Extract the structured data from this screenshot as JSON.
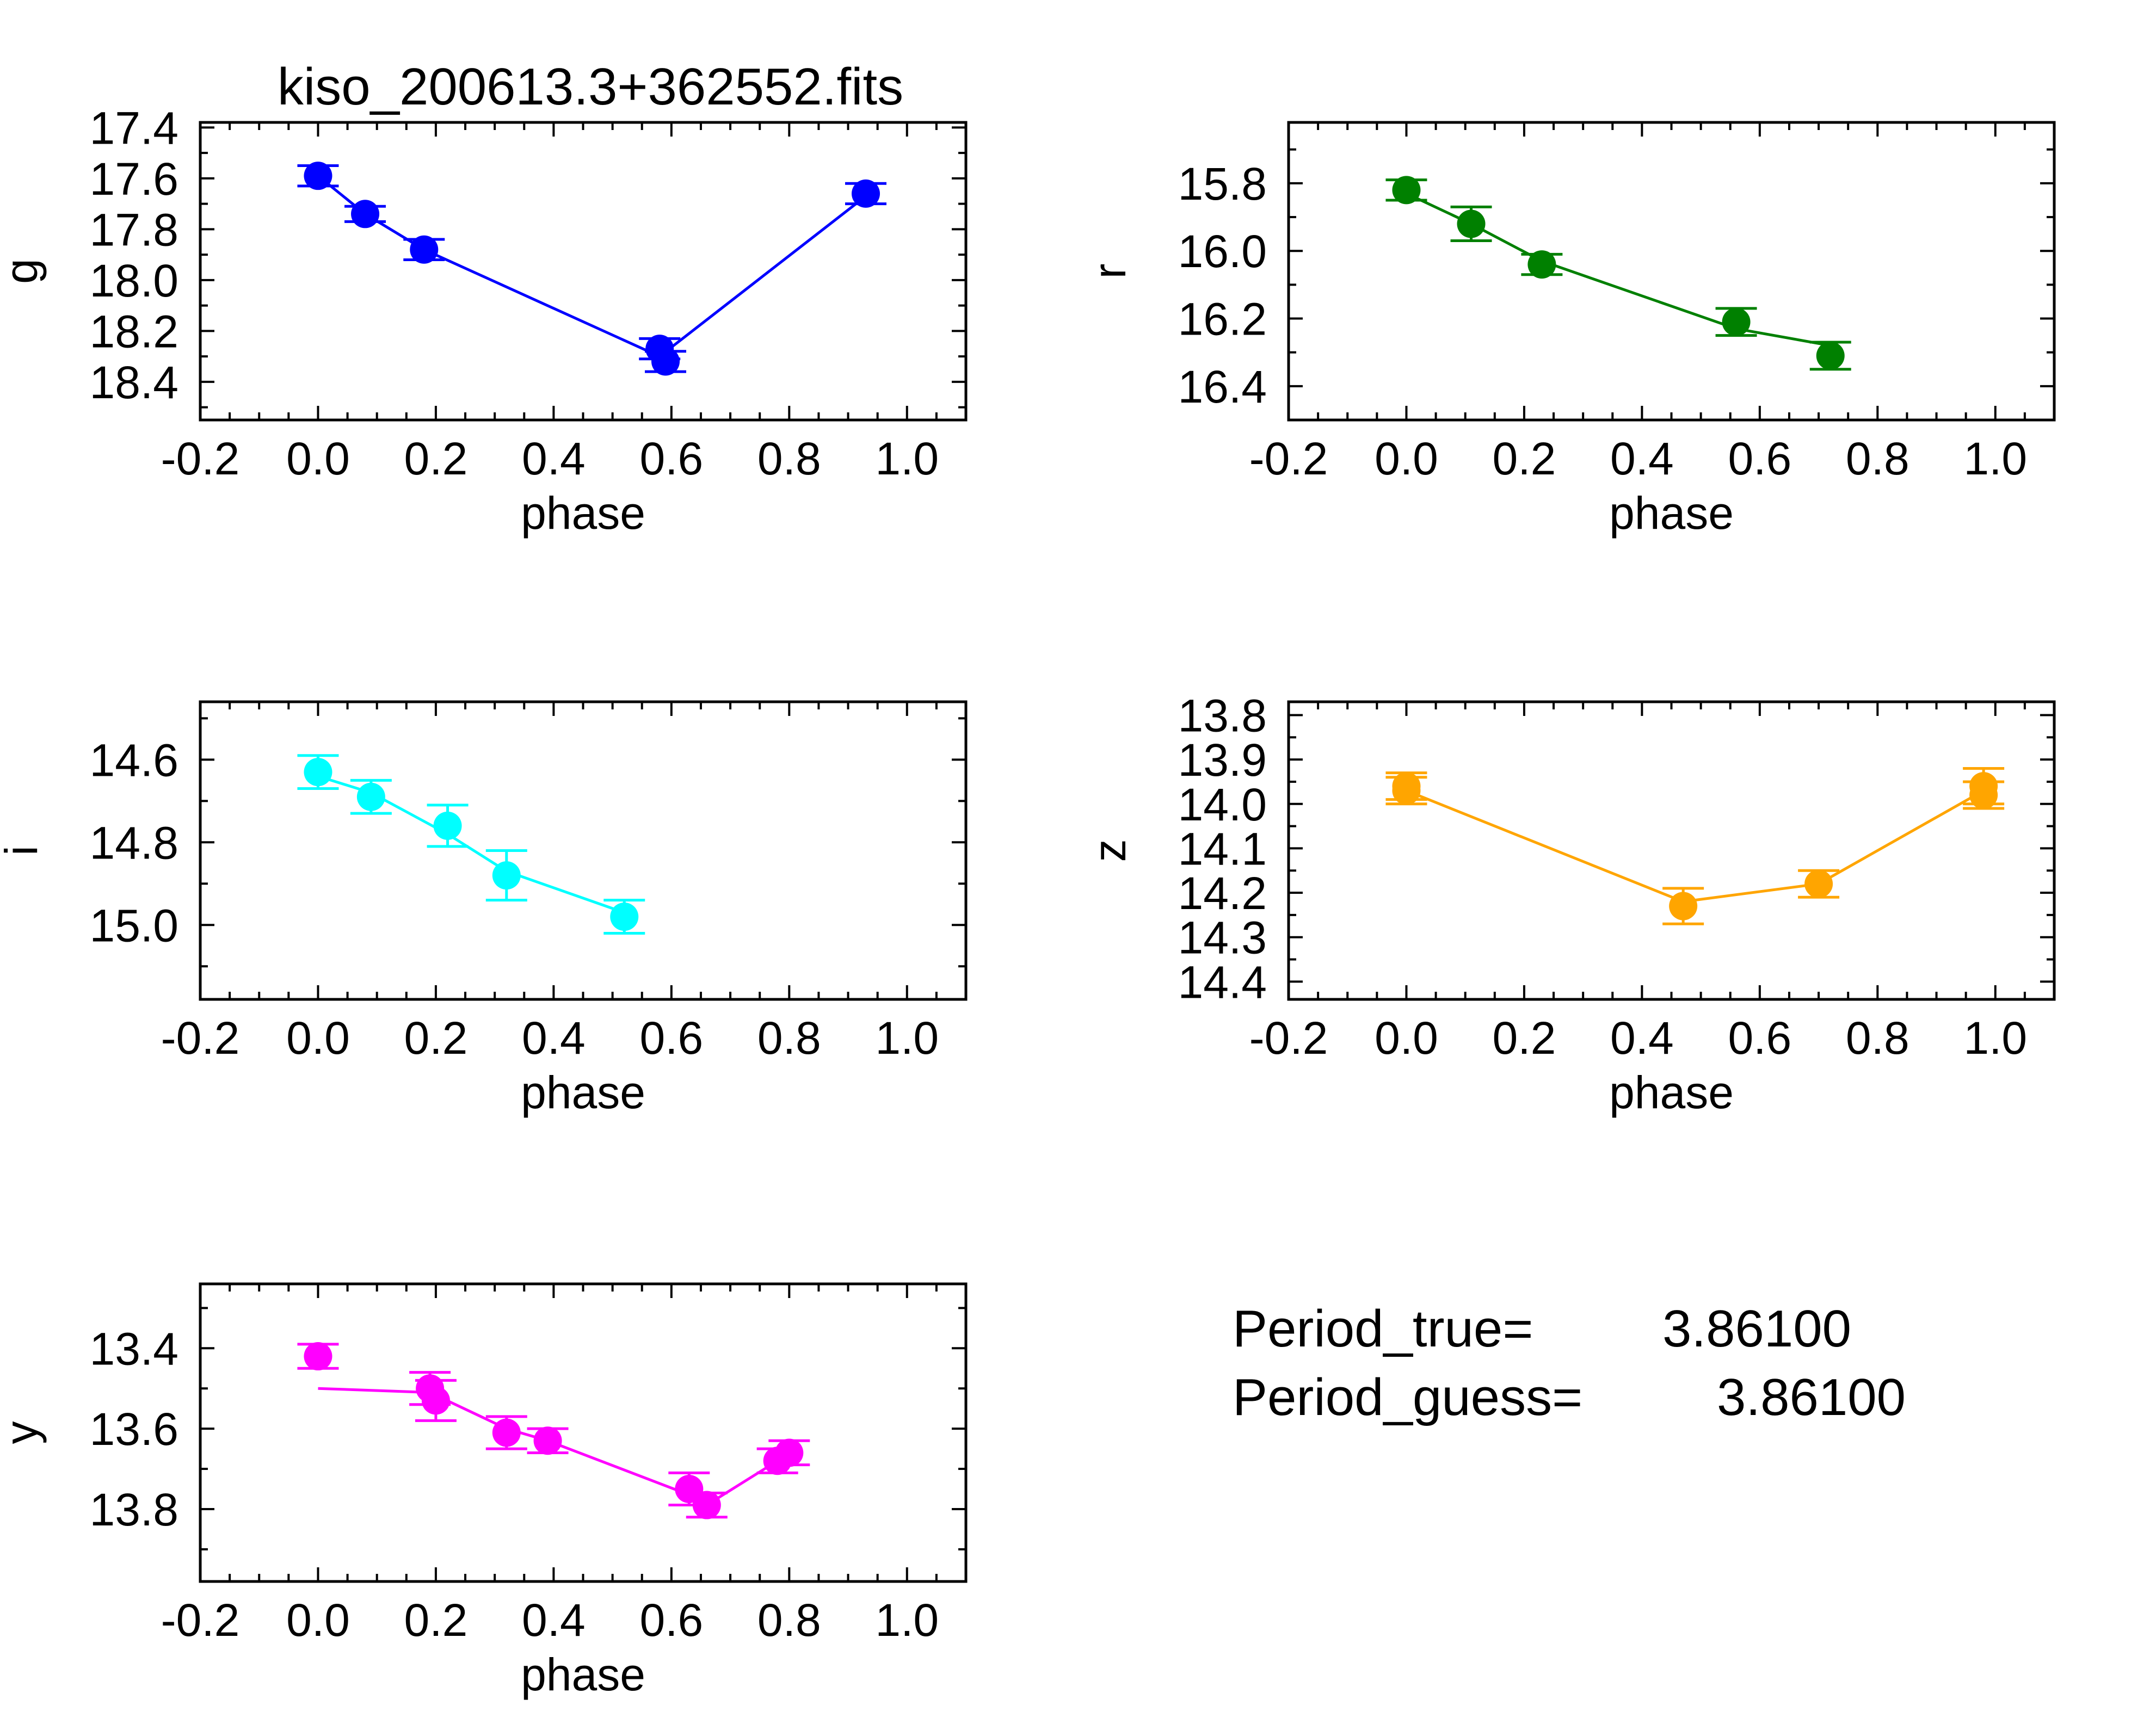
{
  "title": "kiso_200613.3+362552.fits",
  "period": {
    "true_label": "Period_true=",
    "true_value": "3.86100",
    "guess_label": "Period_guess=",
    "guess_value": "3.86100"
  },
  "chart_data": [
    {
      "type": "scatter",
      "band": "g",
      "color": "#0000ff",
      "xlabel": "phase",
      "ylabel": "g",
      "xlim": [
        -0.2,
        1.1
      ],
      "ylim": [
        18.55,
        17.38
      ],
      "y_inverted": true,
      "xticks": [
        "-0.2",
        "0.0",
        "0.2",
        "0.4",
        "0.6",
        "0.8",
        "1.0"
      ],
      "yticks": [
        "17.4",
        "17.6",
        "17.8",
        "18.0",
        "18.2",
        "18.4"
      ],
      "points": [
        {
          "x": 0.0,
          "y": 17.59,
          "err": 0.04
        },
        {
          "x": 0.08,
          "y": 17.74,
          "err": 0.03
        },
        {
          "x": 0.18,
          "y": 17.88,
          "err": 0.04
        },
        {
          "x": 0.58,
          "y": 18.27,
          "err": 0.04
        },
        {
          "x": 0.59,
          "y": 18.32,
          "err": 0.04
        },
        {
          "x": 0.93,
          "y": 17.66,
          "err": 0.04
        }
      ],
      "line": [
        [
          0.0,
          17.59
        ],
        [
          0.08,
          17.74
        ],
        [
          0.18,
          17.88
        ],
        [
          0.58,
          18.3
        ],
        [
          0.93,
          17.67
        ]
      ]
    },
    {
      "type": "scatter",
      "band": "r",
      "color": "#008000",
      "xlabel": "phase",
      "ylabel": "r",
      "xlim": [
        -0.2,
        1.1
      ],
      "ylim": [
        16.5,
        15.62
      ],
      "y_inverted": true,
      "xticks": [
        "-0.2",
        "0.0",
        "0.2",
        "0.4",
        "0.6",
        "0.8",
        "1.0"
      ],
      "yticks": [
        "15.8",
        "16.0",
        "16.2",
        "16.4"
      ],
      "points": [
        {
          "x": 0.0,
          "y": 15.82,
          "err": 0.03
        },
        {
          "x": 0.11,
          "y": 15.92,
          "err": 0.05
        },
        {
          "x": 0.23,
          "y": 16.04,
          "err": 0.03
        },
        {
          "x": 0.56,
          "y": 16.21,
          "err": 0.04
        },
        {
          "x": 0.72,
          "y": 16.31,
          "err": 0.04
        }
      ],
      "line": [
        [
          0.0,
          15.83
        ],
        [
          0.11,
          15.92
        ],
        [
          0.23,
          16.03
        ],
        [
          0.56,
          16.23
        ],
        [
          0.72,
          16.28
        ]
      ]
    },
    {
      "type": "scatter",
      "band": "i",
      "color": "#00ffff",
      "xlabel": "phase",
      "ylabel": "i",
      "xlim": [
        -0.2,
        1.1
      ],
      "ylim": [
        15.18,
        14.46
      ],
      "y_inverted": true,
      "xticks": [
        "-0.2",
        "0.0",
        "0.2",
        "0.4",
        "0.6",
        "0.8",
        "1.0"
      ],
      "yticks": [
        "14.6",
        "14.8",
        "15.0"
      ],
      "points": [
        {
          "x": 0.0,
          "y": 14.63,
          "err": 0.04
        },
        {
          "x": 0.09,
          "y": 14.69,
          "err": 0.04
        },
        {
          "x": 0.22,
          "y": 14.76,
          "err": 0.05
        },
        {
          "x": 0.32,
          "y": 14.88,
          "err": 0.06
        },
        {
          "x": 0.52,
          "y": 14.98,
          "err": 0.04
        }
      ],
      "line": [
        [
          0.0,
          14.64
        ],
        [
          0.09,
          14.68
        ],
        [
          0.22,
          14.78
        ],
        [
          0.32,
          14.87
        ],
        [
          0.52,
          14.97
        ]
      ]
    },
    {
      "type": "scatter",
      "band": "z",
      "color": "#ffa500",
      "xlabel": "phase",
      "ylabel": "z",
      "xlim": [
        -0.2,
        1.1
      ],
      "ylim": [
        14.44,
        13.77
      ],
      "y_inverted": true,
      "xticks": [
        "-0.2",
        "0.0",
        "0.2",
        "0.4",
        "0.6",
        "0.8",
        "1.0"
      ],
      "yticks": [
        "13.8",
        "13.9",
        "14.0",
        "14.1",
        "14.2",
        "14.3",
        "14.4"
      ],
      "points": [
        {
          "x": 0.0,
          "y": 13.96,
          "err": 0.03
        },
        {
          "x": 0.0,
          "y": 13.97,
          "err": 0.03
        },
        {
          "x": 0.47,
          "y": 14.23,
          "err": 0.04
        },
        {
          "x": 0.7,
          "y": 14.18,
          "err": 0.03
        },
        {
          "x": 0.98,
          "y": 13.96,
          "err": 0.04
        },
        {
          "x": 0.98,
          "y": 13.98,
          "err": 0.03
        }
      ],
      "line": [
        [
          0.0,
          13.97
        ],
        [
          0.47,
          14.22
        ],
        [
          0.7,
          14.18
        ],
        [
          0.98,
          13.97
        ]
      ]
    },
    {
      "type": "scatter",
      "band": "y",
      "color": "#ff00ff",
      "xlabel": "phase",
      "ylabel": "y",
      "xlim": [
        -0.2,
        1.1
      ],
      "ylim": [
        13.98,
        13.24
      ],
      "y_inverted": true,
      "xticks": [
        "-0.2",
        "0.0",
        "0.2",
        "0.4",
        "0.6",
        "0.8",
        "1.0"
      ],
      "yticks": [
        "13.4",
        "13.6",
        "13.8"
      ],
      "points": [
        {
          "x": 0.0,
          "y": 13.42,
          "err": 0.03
        },
        {
          "x": 0.19,
          "y": 13.5,
          "err": 0.04
        },
        {
          "x": 0.2,
          "y": 13.53,
          "err": 0.05
        },
        {
          "x": 0.32,
          "y": 13.61,
          "err": 0.04
        },
        {
          "x": 0.39,
          "y": 13.63,
          "err": 0.03
        },
        {
          "x": 0.63,
          "y": 13.75,
          "err": 0.04
        },
        {
          "x": 0.66,
          "y": 13.79,
          "err": 0.03
        },
        {
          "x": 0.78,
          "y": 13.68,
          "err": 0.03
        },
        {
          "x": 0.8,
          "y": 13.66,
          "err": 0.03
        }
      ],
      "line": [
        [
          0.0,
          13.5
        ],
        [
          0.19,
          13.51
        ],
        [
          0.32,
          13.6
        ],
        [
          0.39,
          13.63
        ],
        [
          0.64,
          13.77
        ],
        [
          0.66,
          13.79
        ],
        [
          0.78,
          13.68
        ],
        [
          0.8,
          13.66
        ]
      ]
    }
  ]
}
